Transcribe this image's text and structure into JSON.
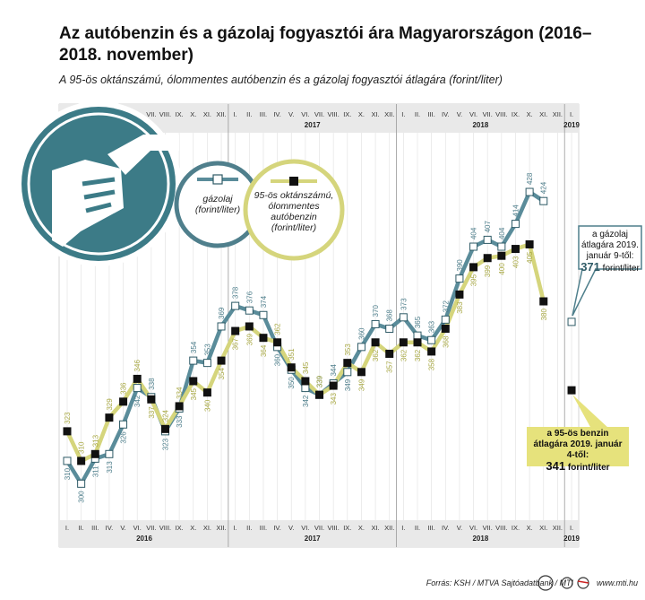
{
  "chart_data": {
    "type": "line",
    "title": "Az autóbenzin és a gázolaj fogyasztói ára Magyarországon (2016–2018. november)",
    "subtitle": "A 95-ös oktánszámú, ólommentes autóbenzin és a gázolaj fogyasztói átlagára (forint/liter)",
    "years": [
      {
        "year": "2016",
        "months": [
          "I.",
          "II.",
          "III.",
          "IV.",
          "V.",
          "VI.",
          "VII.",
          "VIII.",
          "IX.",
          "X.",
          "XI.",
          "XII."
        ]
      },
      {
        "year": "2017",
        "months": [
          "I.",
          "II.",
          "III.",
          "IV.",
          "V.",
          "VI.",
          "VII.",
          "VIII.",
          "IX.",
          "X.",
          "XI.",
          "XII."
        ]
      },
      {
        "year": "2018",
        "months": [
          "I.",
          "II.",
          "III.",
          "IV.",
          "V.",
          "VI.",
          "VII.",
          "VIII.",
          "IX.",
          "X.",
          "XI.",
          "XII."
        ]
      },
      {
        "year": "2019",
        "months": [
          "I."
        ]
      }
    ],
    "series": [
      {
        "name": "gázolaj (forint/liter)",
        "color": "#5a8c9a",
        "marker": "white",
        "values": [
          310,
          300,
          311,
          313,
          326,
          342,
          338,
          323,
          333,
          354,
          353,
          369,
          378,
          376,
          374,
          360,
          350,
          342,
          339,
          344,
          349,
          360,
          370,
          368,
          373,
          365,
          363,
          372,
          390,
          404,
          407,
          404,
          414,
          428,
          424,
          null,
          null
        ]
      },
      {
        "name": "95-ös oktánszámú, ólommentes autóbenzin (forint/liter)",
        "color": "#d5d57c",
        "marker": "black",
        "values": [
          323,
          310,
          313,
          329,
          336,
          346,
          337,
          324,
          334,
          345,
          340,
          354,
          367,
          369,
          364,
          362,
          351,
          345,
          339,
          343,
          353,
          349,
          362,
          357,
          362,
          362,
          358,
          368,
          383,
          395,
          399,
          400,
          403,
          405,
          380,
          null,
          null
        ]
      }
    ],
    "callouts": [
      {
        "text": "a gázolaj átlagára 2019. január 9-től:",
        "value": 371,
        "unit": "forint/liter"
      },
      {
        "text": "a 95-ös benzin átlagára 2019. január 4-től:",
        "value": 341,
        "unit": "forint/liter"
      }
    ],
    "ylim": [
      284,
      465
    ],
    "source": "Forrás: KSH / MTVA Sajtóadatbank / MTI",
    "website": "www.mti.hu"
  }
}
